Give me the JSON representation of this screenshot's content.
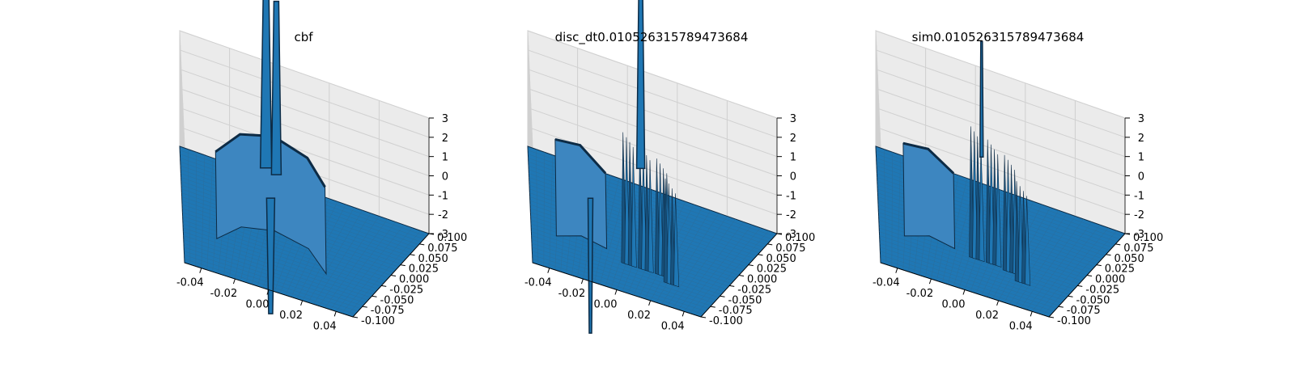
{
  "figure": {
    "background": "#ffffff",
    "surface_color": "#1f77b4",
    "surface_dark": "#0d2b45",
    "pane_color": "#f2f2f2",
    "grid_color": "#d0d0d0"
  },
  "chart_data": [
    {
      "type": "surface3d",
      "title": "cbf",
      "x_ticks": [
        "-0.04",
        "-0.02",
        "0.00",
        "0.02",
        "0.04"
      ],
      "y_ticks": [
        "0.100",
        "0.075",
        "0.050",
        "0.025",
        "0.000",
        "-0.025",
        "-0.050",
        "-0.075",
        "-0.100"
      ],
      "z_ticks": [
        "3",
        "2",
        "1",
        "0",
        "-1",
        "-2",
        "-3"
      ],
      "xlim": [
        -0.05,
        0.05
      ],
      "ylim": [
        -0.1,
        0.1
      ],
      "zlim": [
        -3,
        3
      ],
      "description": "flat plane at z=-3 with a cylindrical wall near z=0 and two tall spikes"
    },
    {
      "type": "surface3d",
      "title": "disc_dt0.010526315789473684",
      "x_ticks": [
        "-0.04",
        "-0.02",
        "0.00",
        "0.02",
        "0.04"
      ],
      "y_ticks": [
        "0.100",
        "0.075",
        "0.050",
        "0.025",
        "0.000",
        "-0.025",
        "-0.050",
        "-0.075",
        "-0.100"
      ],
      "z_ticks": [
        "3",
        "2",
        "1",
        "0",
        "-1",
        "-2",
        "-3"
      ],
      "xlim": [
        -0.05,
        0.05
      ],
      "ylim": [
        -0.1,
        0.1
      ],
      "zlim": [
        -3,
        3
      ],
      "description": "flat plane with jagged walls and spikes"
    },
    {
      "type": "surface3d",
      "title": "sim0.010526315789473684",
      "x_ticks": [
        "-0.04",
        "-0.02",
        "0.00",
        "0.02",
        "0.04"
      ],
      "y_ticks": [
        "0.100",
        "0.075",
        "0.050",
        "0.025",
        "0.000",
        "-0.025",
        "-0.050",
        "-0.075",
        "-0.100"
      ],
      "z_ticks": [
        "3",
        "2",
        "1",
        "0",
        "-1",
        "-2",
        "-3"
      ],
      "xlim": [
        -0.05,
        0.05
      ],
      "ylim": [
        -0.1,
        0.1
      ],
      "zlim": [
        -3,
        3
      ],
      "description": "flat plane with jagged walls and a thin spike"
    }
  ]
}
